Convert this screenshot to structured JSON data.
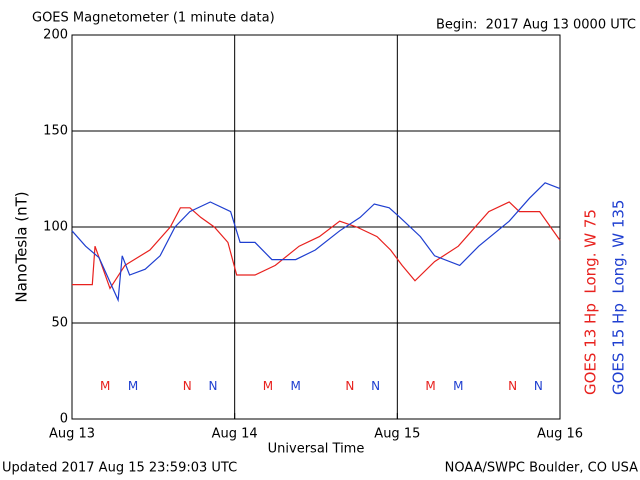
{
  "chart_data": {
    "type": "line",
    "title": "GOES Magnetometer (1 minute data)",
    "subtitle": "Begin:  2017 Aug 13 0000 UTC",
    "y_label": "NanoTesla (nT)",
    "x_label": "Universal Time",
    "footer_left": "Updated 2017 Aug 15 23:59:03 UTC",
    "footer_right": "NOAA/SWPC Boulder, CO USA",
    "xlim": [
      0,
      72
    ],
    "xticks": [
      {
        "value": 0,
        "label": "Aug 13"
      },
      {
        "value": 24,
        "label": "Aug 14"
      },
      {
        "value": 48,
        "label": "Aug 15"
      },
      {
        "value": 72,
        "label": "Aug 16"
      }
    ],
    "ylim": [
      0,
      200
    ],
    "yticks": [
      0,
      50,
      100,
      150,
      200
    ],
    "grid": true,
    "series": [
      {
        "name": "GOES 13 Hp  Long. W 75",
        "color": "#e8211e",
        "x": [
          0,
          3,
          3.4,
          5.6,
          7.8,
          11.5,
          14.5,
          16,
          17.4,
          19,
          21,
          23,
          24.3,
          27,
          30,
          33.5,
          36.5,
          39.5,
          42,
          45,
          47,
          48.7,
          50.6,
          53.5,
          57,
          61.5,
          64.5,
          66,
          69,
          72
        ],
        "values": [
          70,
          70,
          90,
          68,
          80,
          88,
          100,
          110,
          110,
          105,
          100,
          92,
          75,
          75,
          80,
          90,
          95,
          103,
          100,
          95,
          88,
          80,
          72,
          82,
          90,
          108,
          113,
          108,
          108,
          93
        ]
      },
      {
        "name": "GOES 15 Hp  Long. W 135",
        "color": "#1f3fd0",
        "x": [
          0,
          2,
          4,
          6.8,
          7.4,
          8.5,
          10.8,
          13,
          15.2,
          17.4,
          20.4,
          23.4,
          24.8,
          27,
          29.5,
          33,
          35.9,
          39.5,
          42.5,
          44.6,
          46.8,
          48.4,
          51.4,
          53.5,
          57.2,
          60,
          64.5,
          67.5,
          69.8,
          72
        ],
        "values": [
          98,
          90,
          84,
          62,
          85,
          75,
          78,
          85,
          100,
          108,
          113,
          108,
          92,
          92,
          83,
          83,
          88,
          98,
          105,
          112,
          110,
          105,
          95,
          85,
          80,
          90,
          103,
          115,
          123,
          120
        ]
      }
    ],
    "annotations": [
      {
        "text": "M",
        "color": "#e8211e",
        "x": 4.9,
        "y": 17
      },
      {
        "text": "M",
        "color": "#1f3fd0",
        "x": 9,
        "y": 17
      },
      {
        "text": "N",
        "color": "#e8211e",
        "x": 17,
        "y": 17
      },
      {
        "text": "N",
        "color": "#1f3fd0",
        "x": 20.8,
        "y": 17
      },
      {
        "text": "M",
        "color": "#e8211e",
        "x": 28.9,
        "y": 17
      },
      {
        "text": "M",
        "color": "#1f3fd0",
        "x": 33,
        "y": 17
      },
      {
        "text": "N",
        "color": "#e8211e",
        "x": 41,
        "y": 17
      },
      {
        "text": "N",
        "color": "#1f3fd0",
        "x": 44.8,
        "y": 17
      },
      {
        "text": "M",
        "color": "#e8211e",
        "x": 52.9,
        "y": 17
      },
      {
        "text": "M",
        "color": "#1f3fd0",
        "x": 57,
        "y": 17
      },
      {
        "text": "N",
        "color": "#e8211e",
        "x": 65,
        "y": 17
      },
      {
        "text": "N",
        "color": "#1f3fd0",
        "x": 68.8,
        "y": 17
      }
    ]
  }
}
